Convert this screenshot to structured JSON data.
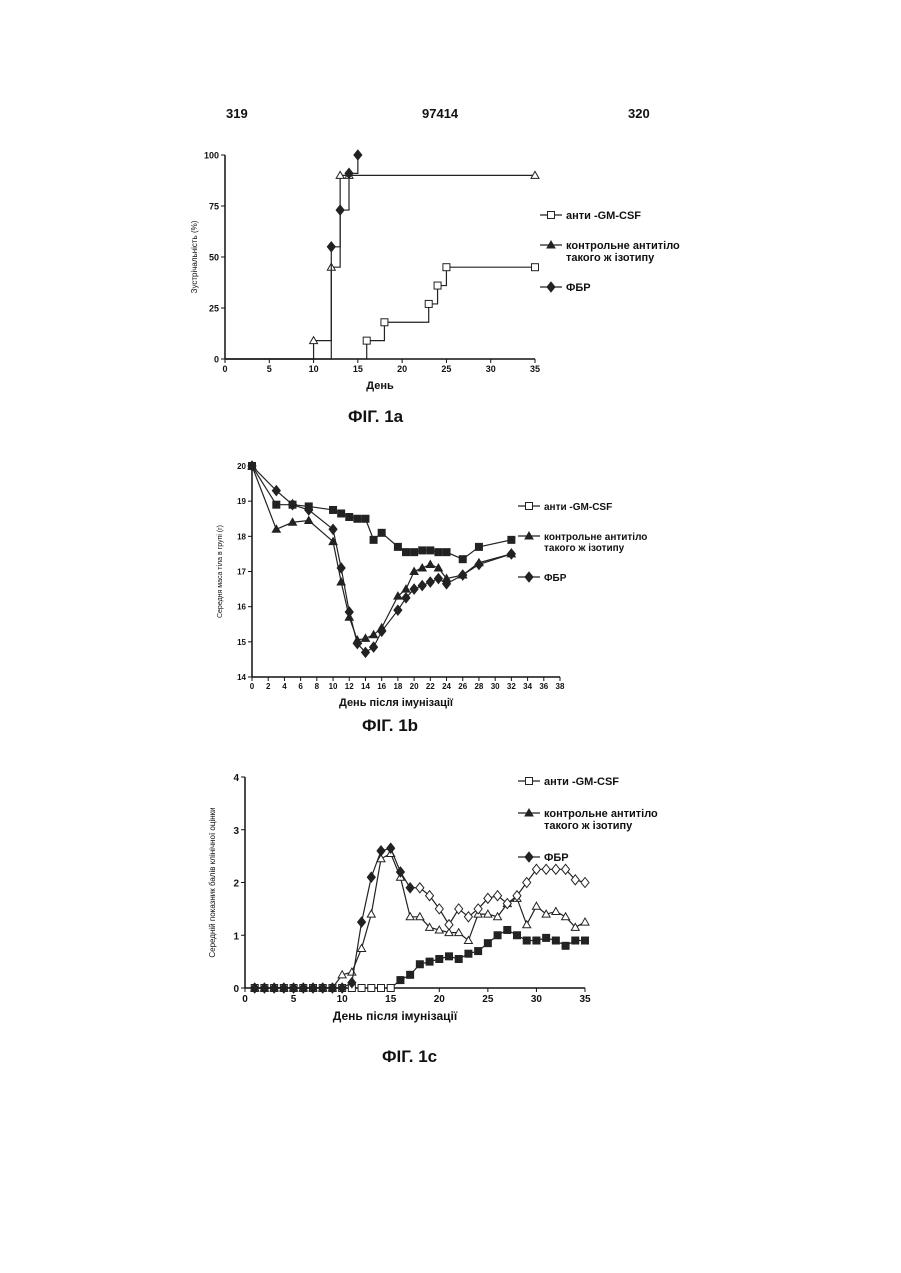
{
  "header": {
    "left_page": "319",
    "patent_number": "97414",
    "right_page": "320"
  },
  "chart_data": [
    {
      "id": "fig1a",
      "type": "line",
      "step": true,
      "caption": "ФІГ. 1а",
      "xlabel": "День",
      "ylabel": "Зустрічальність (%)",
      "xlim": [
        0,
        35
      ],
      "ylim": [
        0,
        100
      ],
      "xticks": [
        0,
        5,
        10,
        15,
        20,
        25,
        30,
        35
      ],
      "yticks": [
        0,
        25,
        50,
        75,
        100
      ],
      "legend_position": "right",
      "series": [
        {
          "name": "анти -GM-CSF",
          "marker": "square",
          "x": [
            0,
            16,
            18,
            23,
            24,
            25,
            35
          ],
          "y": [
            0,
            9,
            18,
            27,
            36,
            45,
            45
          ]
        },
        {
          "name": "контрольне антитіло такого ж  ізотипу",
          "marker": "triangle",
          "x": [
            0,
            10,
            12,
            13,
            14,
            35
          ],
          "y": [
            0,
            9,
            45,
            90,
            90,
            90
          ]
        },
        {
          "name": "ФБР",
          "marker": "diamond",
          "x": [
            0,
            12,
            13,
            14,
            15
          ],
          "y": [
            0,
            55,
            73,
            91,
            100
          ]
        }
      ]
    },
    {
      "id": "fig1b",
      "type": "line",
      "caption": "ФІГ. 1b",
      "xlabel": "День після імунізації",
      "ylabel": "Середня маса тіла в групі (г)",
      "xlim": [
        0,
        38
      ],
      "ylim": [
        14,
        20
      ],
      "xticks": [
        0,
        2,
        4,
        6,
        8,
        10,
        12,
        14,
        16,
        18,
        20,
        22,
        24,
        26,
        28,
        30,
        32,
        34,
        36,
        38
      ],
      "yticks": [
        14,
        15,
        16,
        17,
        18,
        19,
        20
      ],
      "legend_position": "right",
      "series": [
        {
          "name": "анти -GM-CSF",
          "marker": "square",
          "x": [
            0,
            3,
            5,
            7,
            10,
            11,
            12,
            13,
            14,
            15,
            16,
            18,
            19,
            20,
            21,
            22,
            23,
            24,
            26,
            28,
            32
          ],
          "y": [
            20,
            18.9,
            18.9,
            18.85,
            18.75,
            18.65,
            18.55,
            18.5,
            18.5,
            17.9,
            18.1,
            17.7,
            17.55,
            17.55,
            17.6,
            17.6,
            17.55,
            17.55,
            17.35,
            17.7,
            17.9
          ]
        },
        {
          "name": "контрольне антитіло такого ж  ізотипу",
          "marker": "triangle",
          "x": [
            0,
            3,
            5,
            7,
            10,
            11,
            12,
            13,
            14,
            15,
            16,
            18,
            19,
            20,
            21,
            22,
            23,
            24,
            26,
            28,
            32
          ],
          "y": [
            20,
            18.2,
            18.4,
            18.45,
            17.85,
            16.7,
            15.7,
            15.05,
            15.1,
            15.2,
            15.4,
            16.3,
            16.5,
            17.0,
            17.1,
            17.2,
            17.1,
            16.8,
            16.9,
            17.25,
            17.5
          ]
        },
        {
          "name": "ФБР",
          "marker": "diamond",
          "x": [
            0,
            3,
            5,
            7,
            10,
            11,
            12,
            13,
            14,
            15,
            16,
            18,
            19,
            20,
            21,
            22,
            23,
            24,
            26,
            28,
            32
          ],
          "y": [
            20,
            19.3,
            18.9,
            18.75,
            18.2,
            17.1,
            15.85,
            14.95,
            14.7,
            14.85,
            15.3,
            15.9,
            16.25,
            16.5,
            16.6,
            16.7,
            16.8,
            16.65,
            16.9,
            17.2,
            17.5
          ]
        }
      ]
    },
    {
      "id": "fig1c",
      "type": "line",
      "caption": "ФІГ. 1с",
      "xlabel": "День після імунізації",
      "ylabel": "Середній показник балів клінічної оцінки",
      "xlim": [
        0,
        35
      ],
      "ylim": [
        0,
        4
      ],
      "xticks": [
        0,
        5,
        10,
        15,
        20,
        25,
        30,
        35
      ],
      "yticks": [
        0,
        1,
        2,
        3,
        4
      ],
      "legend_position": "top-right",
      "series": [
        {
          "name": "анти -GM-CSF",
          "marker": "square",
          "x": [
            1,
            2,
            3,
            4,
            5,
            6,
            7,
            8,
            9,
            10,
            11,
            12,
            13,
            14,
            15,
            16,
            17,
            18,
            19,
            20,
            21,
            22,
            23,
            24,
            25,
            26,
            27,
            28,
            29,
            30,
            31,
            32,
            33,
            34,
            35
          ],
          "y": [
            0,
            0,
            0,
            0,
            0,
            0,
            0,
            0,
            0,
            0,
            0,
            0,
            0,
            0,
            0,
            0.15,
            0.25,
            0.45,
            0.5,
            0.55,
            0.6,
            0.55,
            0.65,
            0.7,
            0.85,
            1.0,
            1.1,
            1.0,
            0.9,
            0.9,
            0.95,
            0.9,
            0.8,
            0.9,
            0.9
          ]
        },
        {
          "name": "контрольне антитіло такого ж  ізотипу",
          "marker": "triangle",
          "x": [
            1,
            2,
            3,
            4,
            5,
            6,
            7,
            8,
            9,
            10,
            11,
            12,
            13,
            14,
            15,
            16,
            17,
            18,
            19,
            20,
            21,
            22,
            23,
            24,
            25,
            26,
            27,
            28,
            29,
            30,
            31,
            32,
            33,
            34,
            35
          ],
          "y": [
            0,
            0,
            0,
            0,
            0,
            0,
            0,
            0,
            0,
            0.25,
            0.3,
            0.75,
            1.4,
            2.45,
            2.55,
            2.1,
            1.35,
            1.35,
            1.15,
            1.1,
            1.05,
            1.05,
            0.9,
            1.4,
            1.4,
            1.35,
            1.6,
            1.7,
            1.2,
            1.55,
            1.4,
            1.45,
            1.35,
            1.15,
            1.25
          ]
        },
        {
          "name": "ФБР",
          "marker": "diamond",
          "x": [
            1,
            2,
            3,
            4,
            5,
            6,
            7,
            8,
            9,
            10,
            11,
            12,
            13,
            14,
            15,
            16,
            17,
            18,
            19,
            20,
            21,
            22,
            23,
            24,
            25,
            26,
            27,
            28,
            29,
            30,
            31,
            32,
            33,
            34,
            35
          ],
          "y": [
            0,
            0,
            0,
            0,
            0,
            0,
            0,
            0,
            0,
            0,
            0.1,
            1.25,
            2.1,
            2.6,
            2.65,
            2.2,
            1.9,
            1.9,
            1.75,
            1.5,
            1.2,
            1.5,
            1.35,
            1.5,
            1.7,
            1.75,
            1.6,
            1.75,
            2.0,
            2.25,
            2.25,
            2.25,
            2.25,
            2.05,
            2.0
          ]
        }
      ]
    }
  ]
}
